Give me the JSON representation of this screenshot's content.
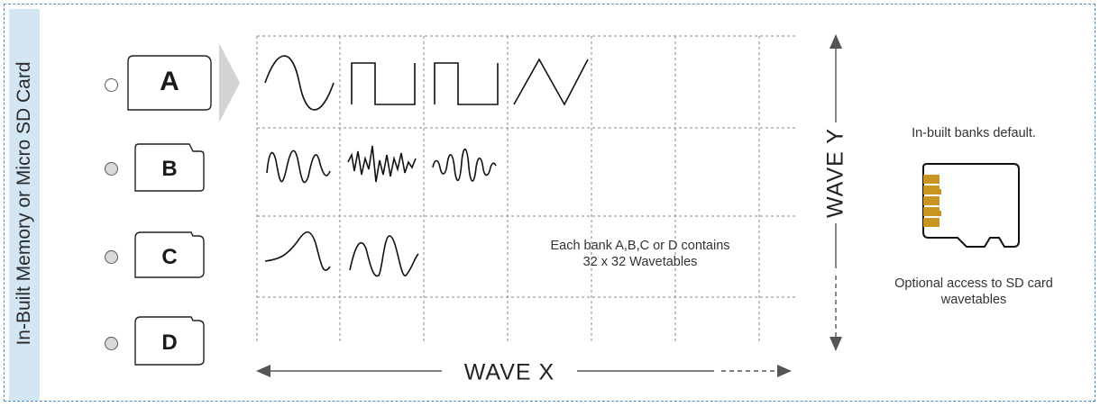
{
  "side_label": "In-Built Memory or Micro SD Card",
  "banks": [
    {
      "label": "A",
      "selected": true
    },
    {
      "label": "B",
      "selected": false
    },
    {
      "label": "C",
      "selected": false
    },
    {
      "label": "D",
      "selected": false
    }
  ],
  "grid_caption_line1": "Each bank A,B,C or D contains",
  "grid_caption_line2": "32 x 32 Wavetables",
  "wave_y_label": "WAVE Y",
  "wave_x_label": "WAVE X",
  "info_top": "In-built banks default.",
  "info_bottom_line1": "Optional access to SD card",
  "info_bottom_line2": "wavetables",
  "colors": {
    "frame": "#4a8fc9",
    "side_bar": "#d3e6f4",
    "sd_contacts": "#c8961e"
  }
}
